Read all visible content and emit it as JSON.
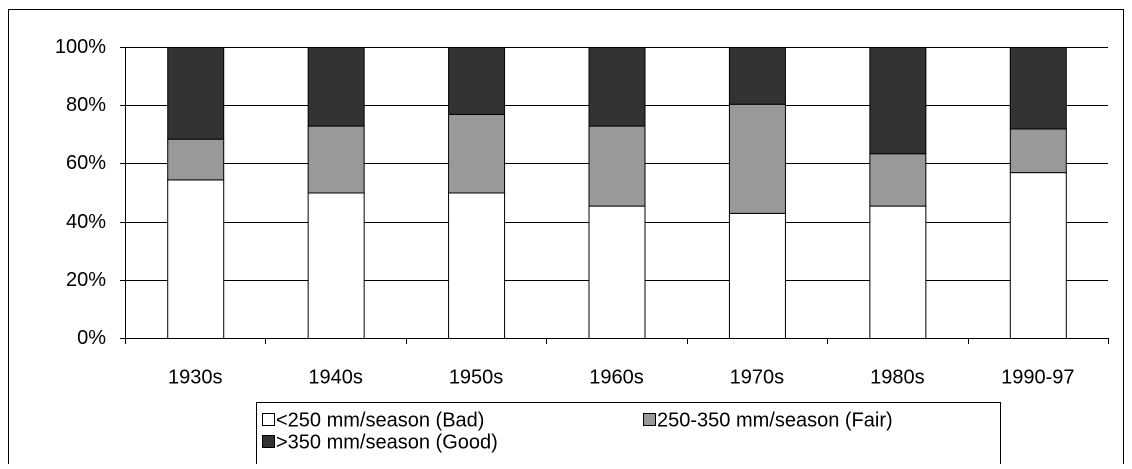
{
  "chart_data": {
    "type": "stacked_bar_100",
    "categories": [
      "1930s",
      "1940s",
      "1950s",
      "1960s",
      "1970s",
      "1980s",
      "1990-97"
    ],
    "series": [
      {
        "name": "<250 mm/season (Bad)",
        "color": "#ffffff",
        "values": [
          54.5,
          50,
          50,
          45.5,
          43,
          45.5,
          57
        ]
      },
      {
        "name": "250-350 mm/season (Fair)",
        "color": "#999999",
        "values": [
          14,
          23,
          27,
          27.5,
          37.5,
          18,
          15
        ]
      },
      {
        "name": ">350 mm/season (Good)",
        "color": "#333333",
        "values": [
          31.5,
          27,
          23,
          27,
          19.5,
          36.5,
          28
        ]
      }
    ],
    "ylim": [
      0,
      100
    ],
    "yticks": [
      {
        "value": 0,
        "label": "0%"
      },
      {
        "value": 20,
        "label": "20%"
      },
      {
        "value": 40,
        "label": "40%"
      },
      {
        "value": 60,
        "label": "60%"
      },
      {
        "value": 80,
        "label": "80%"
      },
      {
        "value": 100,
        "label": "100%"
      }
    ],
    "grid": true,
    "legend": "bottom"
  }
}
